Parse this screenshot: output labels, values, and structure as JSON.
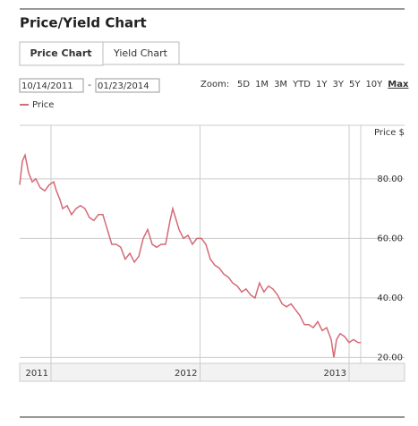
{
  "header": {
    "title": "Price/Yield Chart"
  },
  "tabs": [
    "Price Chart",
    "Yield Chart"
  ],
  "date_range": {
    "start": "10/14/2011",
    "separator": "-",
    "end": "01/23/2014"
  },
  "zoom": {
    "label": "Zoom:",
    "options": [
      "5D",
      "1M",
      "3M",
      "YTD",
      "1Y",
      "3Y",
      "5Y",
      "10Y",
      "Max"
    ],
    "active": "Max"
  },
  "chart_data": {
    "type": "line",
    "y_axis_title": "Price $",
    "x": [
      2010.79,
      2010.808,
      2010.826,
      2010.85,
      2010.874,
      2010.898,
      2010.928,
      2010.958,
      2010.988,
      2011.018,
      2011.036,
      2011.06,
      2011.078,
      2011.108,
      2011.138,
      2011.168,
      2011.198,
      2011.228,
      2011.258,
      2011.288,
      2011.318,
      2011.348,
      2011.378,
      2011.408,
      2011.438,
      2011.468,
      2011.498,
      2011.529,
      2011.559,
      2011.589,
      2011.619,
      2011.649,
      2011.679,
      2011.709,
      2011.739,
      2011.769,
      2011.799,
      2011.817,
      2011.841,
      2011.859,
      2011.889,
      2011.919,
      2011.949,
      2011.979,
      2012.009,
      2012.039,
      2012.069,
      2012.099,
      2012.129,
      2012.159,
      2012.189,
      2012.219,
      2012.249,
      2012.279,
      2012.309,
      2012.339,
      2012.369,
      2012.399,
      2012.429,
      2012.459,
      2012.489,
      2012.52,
      2012.55,
      2012.58,
      2012.61,
      2012.64,
      2012.67,
      2012.7,
      2012.73,
      2012.76,
      2012.79,
      2012.82,
      2012.85,
      2012.88,
      2012.898,
      2012.916,
      2012.94,
      2012.97,
      2013.0,
      2013.03,
      2013.06,
      2013.078
    ],
    "series": [
      {
        "name": "Price",
        "color": "#d46a77",
        "values": [
          78,
          86,
          88,
          82,
          79,
          80,
          77,
          76,
          78,
          79,
          76,
          73,
          70,
          71,
          68,
          70,
          71,
          70,
          67,
          66,
          68,
          68,
          63,
          58,
          58,
          57,
          53,
          55,
          52,
          54,
          60,
          63,
          58,
          57,
          58,
          58,
          66,
          70,
          66,
          63,
          60,
          61,
          58,
          60,
          60,
          58,
          53,
          51,
          50,
          48,
          47,
          45,
          44,
          42,
          43,
          41,
          40,
          45,
          42,
          44,
          43,
          41,
          38,
          37,
          38,
          36,
          34,
          31,
          31,
          30,
          32,
          29,
          30,
          26,
          20,
          26,
          28,
          27,
          25,
          26,
          25,
          25
        ]
      }
    ],
    "xlim": [
      2010.79,
      2013.09
    ],
    "xticks": [
      2011,
      2012,
      2013
    ],
    "ylim": [
      18,
      98
    ],
    "yticks": [
      {
        "value": 20,
        "label": "20.00"
      },
      {
        "value": 40,
        "label": "40.00"
      },
      {
        "value": 60,
        "label": "60.00"
      },
      {
        "value": 80,
        "label": "80.00"
      }
    ],
    "grid": true
  }
}
